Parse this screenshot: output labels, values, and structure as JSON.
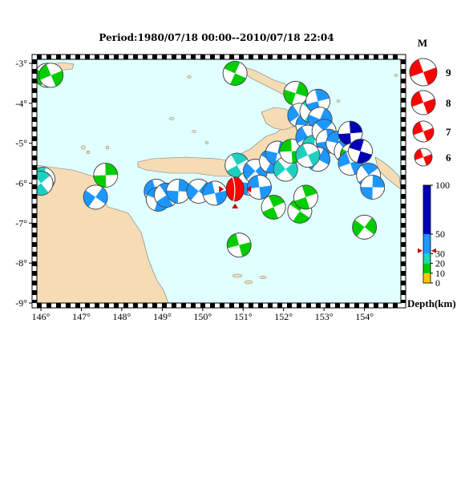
{
  "title": "Period:1980/07/18 00:00--2010/07/18 22:04",
  "map": {
    "lon_range": [
      145.9,
      154.9
    ],
    "lat_range": [
      -9,
      -2.9
    ],
    "x_ticks": [
      146,
      147,
      148,
      149,
      150,
      151,
      152,
      153,
      154
    ],
    "y_ticks": [
      -3,
      -4,
      -5,
      -6,
      -7,
      -8,
      -9
    ],
    "x_tick_labels": [
      "146°",
      "147°",
      "148°",
      "149°",
      "150°",
      "151°",
      "152°",
      "153°",
      "154°"
    ],
    "y_tick_labels": [
      "-3°",
      "-4°",
      "-5°",
      "-6°",
      "-7°",
      "-8°",
      "-9°"
    ],
    "ocean_color": "#e0ffff",
    "land_color": "#f5dcb5",
    "frame": "black-white checkered border"
  },
  "legend_magnitude": {
    "header": "M",
    "items": [
      {
        "mag": 9,
        "label": "9"
      },
      {
        "mag": 8,
        "label": "8"
      },
      {
        "mag": 7,
        "label": "7"
      },
      {
        "mag": 6,
        "label": "6"
      }
    ]
  },
  "depth_scale": {
    "label": "Depth(km)",
    "ticks": [
      {
        "value": 100,
        "label": "100"
      },
      {
        "value": 50,
        "label": "50"
      },
      {
        "value": 30,
        "label": "30"
      },
      {
        "value": 20,
        "label": "20"
      },
      {
        "value": 10,
        "label": "10"
      },
      {
        "value": 0,
        "label": "0"
      }
    ],
    "bands": [
      {
        "from": 0,
        "to": 10,
        "color": "#ffc800"
      },
      {
        "from": 10,
        "to": 20,
        "color": "#00c800"
      },
      {
        "from": 20,
        "to": 30,
        "color": "#1ed7b4"
      },
      {
        "from": 30,
        "to": 50,
        "color": "#1e96ff"
      },
      {
        "from": 50,
        "to": 100,
        "color": "#0000b4"
      }
    ],
    "marker_value": 33
  },
  "colors": {
    "shallow_green": "#00cc00",
    "teal": "#1ecfc0",
    "blue": "#1e96ff",
    "deep_blue": "#0000b4",
    "highlight_red": "#ff0000"
  },
  "highlighted_event": {
    "lon": 150.8,
    "lat": -6.15,
    "color": "#ff0000"
  },
  "events": [
    {
      "lon": 146.15,
      "lat": -3.3,
      "color": "#00cc00"
    },
    {
      "lon": 146.25,
      "lat": -3.3,
      "color": "#00cc00"
    },
    {
      "lon": 146.05,
      "lat": -5.9,
      "color": "#1ecfc0"
    },
    {
      "lon": 146.0,
      "lat": -6.0,
      "color": "#1ecfc0"
    },
    {
      "lon": 147.6,
      "lat": -5.8,
      "color": "#00cc00"
    },
    {
      "lon": 147.35,
      "lat": -6.35,
      "color": "#1e96ff"
    },
    {
      "lon": 148.85,
      "lat": -6.2,
      "color": "#1e96ff"
    },
    {
      "lon": 148.9,
      "lat": -6.4,
      "color": "#1e96ff"
    },
    {
      "lon": 149.1,
      "lat": -6.3,
      "color": "#1e96ff"
    },
    {
      "lon": 149.4,
      "lat": -6.2,
      "color": "#1e96ff"
    },
    {
      "lon": 149.9,
      "lat": -6.2,
      "color": "#1e96ff"
    },
    {
      "lon": 150.3,
      "lat": -6.25,
      "color": "#1e96ff"
    },
    {
      "lon": 150.8,
      "lat": -3.25,
      "color": "#00cc00"
    },
    {
      "lon": 150.85,
      "lat": -5.55,
      "color": "#1ecfc0"
    },
    {
      "lon": 151.15,
      "lat": -6.0,
      "color": "#1e96ff"
    },
    {
      "lon": 151.3,
      "lat": -5.7,
      "color": "#1e96ff"
    },
    {
      "lon": 151.4,
      "lat": -6.1,
      "color": "#1e96ff"
    },
    {
      "lon": 151.7,
      "lat": -5.45,
      "color": "#1e96ff"
    },
    {
      "lon": 151.75,
      "lat": -6.6,
      "color": "#00cc00"
    },
    {
      "lon": 151.85,
      "lat": -5.25,
      "color": "#1e96ff"
    },
    {
      "lon": 152.05,
      "lat": -5.65,
      "color": "#1ecfc0"
    },
    {
      "lon": 152.2,
      "lat": -5.2,
      "color": "#00cc00"
    },
    {
      "lon": 152.4,
      "lat": -6.7,
      "color": "#00cc00"
    },
    {
      "lon": 152.55,
      "lat": -6.35,
      "color": "#00cc00"
    },
    {
      "lon": 152.3,
      "lat": -3.75,
      "color": "#00cc00"
    },
    {
      "lon": 152.4,
      "lat": -4.3,
      "color": "#1e96ff"
    },
    {
      "lon": 152.6,
      "lat": -4.55,
      "color": "#1e96ff"
    },
    {
      "lon": 152.7,
      "lat": -4.2,
      "color": "#1ecfc0"
    },
    {
      "lon": 152.85,
      "lat": -3.95,
      "color": "#1e96ff"
    },
    {
      "lon": 152.9,
      "lat": -4.4,
      "color": "#1e96ff"
    },
    {
      "lon": 152.6,
      "lat": -4.85,
      "color": "#1e96ff"
    },
    {
      "lon": 152.75,
      "lat": -5.1,
      "color": "#1ecfc0"
    },
    {
      "lon": 153.0,
      "lat": -4.7,
      "color": "#1e96ff"
    },
    {
      "lon": 153.1,
      "lat": -4.95,
      "color": "#1e96ff"
    },
    {
      "lon": 152.85,
      "lat": -5.4,
      "color": "#1e96ff"
    },
    {
      "lon": 152.6,
      "lat": -5.3,
      "color": "#1ecfc0"
    },
    {
      "lon": 153.35,
      "lat": -5.0,
      "color": "#1e96ff"
    },
    {
      "lon": 153.55,
      "lat": -5.2,
      "color": "#1e96ff"
    },
    {
      "lon": 153.65,
      "lat": -4.75,
      "color": "#0000b4"
    },
    {
      "lon": 153.7,
      "lat": -5.3,
      "color": "#00cc00"
    },
    {
      "lon": 153.65,
      "lat": -5.5,
      "color": "#1e96ff"
    },
    {
      "lon": 153.9,
      "lat": -5.2,
      "color": "#0000b4"
    },
    {
      "lon": 154.1,
      "lat": -5.8,
      "color": "#1e96ff"
    },
    {
      "lon": 154.2,
      "lat": -6.1,
      "color": "#1e96ff"
    },
    {
      "lon": 154.0,
      "lat": -7.1,
      "color": "#00cc00"
    },
    {
      "lon": 150.9,
      "lat": -7.55,
      "color": "#00cc00"
    }
  ]
}
